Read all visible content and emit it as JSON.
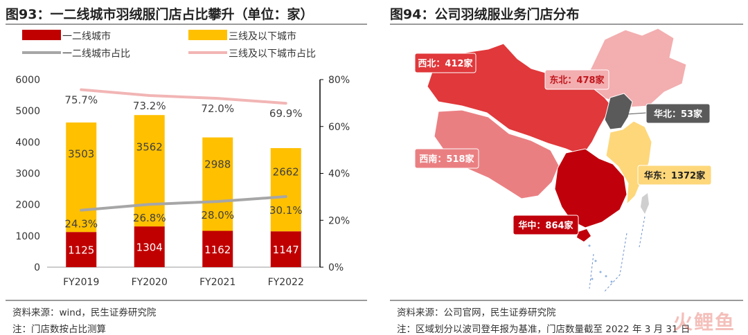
{
  "left": {
    "title": "图93：一二线城市羽绒服门店占比攀升（单位：家）",
    "source": "资料来源：wind，民生证券研究院",
    "note": "注：门店数按占比测算"
  },
  "right": {
    "title": "图94：公司羽绒服业务门店分布",
    "source": "资料来源：公司官网，民生证券研究院",
    "note": "注：区域划分以波司登年报为基准，门店数量截至 2022 年 3 月 31 日",
    "regions": [
      {
        "name": "西北",
        "label": "西北：412家",
        "color": "#e0383b",
        "text_color": "#ffffff"
      },
      {
        "name": "东北",
        "label": "东北：478家",
        "color": "#f3aeb0",
        "text_color": "#c0161c"
      },
      {
        "name": "华北",
        "label": "华北：53家",
        "color": "#5a5a5a",
        "text_color": "#ffffff"
      },
      {
        "name": "西南",
        "label": "西南：518家",
        "color": "#ea7f82",
        "text_color": "#ffffff"
      },
      {
        "name": "华东",
        "label": "华东：1372家",
        "color": "#fdd77a",
        "text_color": "#222222"
      },
      {
        "name": "华中",
        "label": "华中：864家",
        "color": "#c0000b",
        "text_color": "#ffffff"
      }
    ]
  },
  "watermark": "火鲤鱼",
  "chart_data": {
    "type": "bar",
    "categories": [
      "FY2019",
      "FY2020",
      "FY2021",
      "FY2022"
    ],
    "series": [
      {
        "name": "一二线城市",
        "kind": "bar",
        "axis": "left",
        "color": "#c00000",
        "values": [
          1125,
          1304,
          1162,
          1147
        ]
      },
      {
        "name": "三线及以下城市",
        "kind": "bar",
        "axis": "left",
        "color": "#ffc000",
        "values": [
          3503,
          3562,
          2988,
          2662
        ]
      },
      {
        "name": "一二线城市占比",
        "kind": "line",
        "axis": "right",
        "color": "#a6a6a6",
        "values": [
          24.3,
          26.8,
          28.0,
          30.1
        ],
        "labels": [
          "24.3%",
          "26.8%",
          "28.0%",
          "30.1%"
        ]
      },
      {
        "name": "三线及以下城市占比",
        "kind": "line",
        "axis": "right",
        "color": "#f2b5b5",
        "values": [
          75.7,
          73.2,
          72.0,
          69.9
        ],
        "labels": [
          "75.7%",
          "73.2%",
          "72.0%",
          "69.9%"
        ]
      }
    ],
    "ylim": [
      0,
      6000
    ],
    "y_ticks": [
      "0",
      "1000",
      "2000",
      "3000",
      "4000",
      "5000",
      "6000"
    ],
    "y2lim": [
      0,
      80
    ],
    "y2_ticks": [
      "0%",
      "20%",
      "40%",
      "60%",
      "80%"
    ],
    "legend_position": "top",
    "grid": false
  }
}
